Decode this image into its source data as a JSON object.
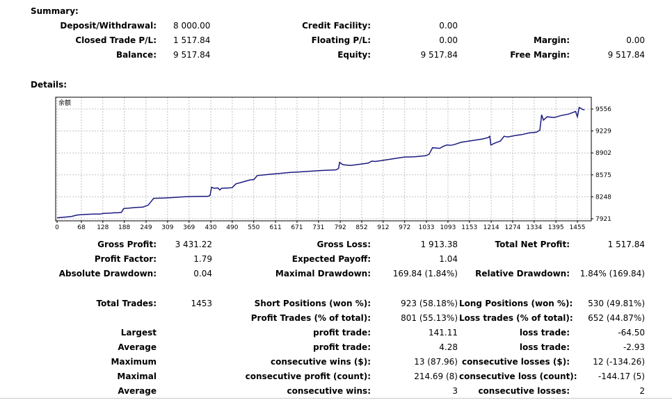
{
  "summary": {
    "title": "Summary:",
    "deposit_label": "Deposit/Withdrawal:",
    "deposit_value": "8 000.00",
    "credit_label": "Credit Facility:",
    "credit_value": "0.00",
    "closed_label": "Closed Trade P/L:",
    "closed_value": "1 517.84",
    "floating_label": "Floating P/L:",
    "floating_value": "0.00",
    "margin_label": "Margin:",
    "margin_value": "0.00",
    "balance_label": "Balance:",
    "balance_value": "9 517.84",
    "equity_label": "Equity:",
    "equity_value": "9 517.84",
    "free_margin_label": "Free Margin:",
    "free_margin_value": "9 517.84"
  },
  "details": {
    "title": "Details:"
  },
  "chart_data": {
    "type": "line",
    "title": "余额",
    "line_color": "#1a1a80",
    "grid": true,
    "x_ticks": [
      0,
      68,
      128,
      188,
      249,
      309,
      369,
      430,
      490,
      550,
      611,
      671,
      731,
      792,
      852,
      912,
      972,
      1033,
      1093,
      1153,
      1214,
      1274,
      1334,
      1395,
      1455
    ],
    "y_ticks": [
      7921,
      8248,
      8575,
      8902,
      9229,
      9556
    ],
    "xlim": [
      0,
      1490
    ],
    "ylim": [
      7921,
      9556
    ],
    "series": [
      {
        "x": [
          0,
          20,
          40,
          55,
          65,
          80,
          100,
          120,
          128,
          150,
          160,
          170,
          180,
          186,
          188,
          200,
          220,
          240,
          255,
          270,
          300,
          330,
          360,
          400,
          420,
          425,
          428,
          432,
          440,
          450,
          455,
          460,
          480,
          490,
          500,
          530,
          540,
          550,
          560,
          590,
          620,
          650,
          680,
          710,
          740,
          780,
          787,
          790,
          800,
          820,
          850,
          870,
          880,
          890,
          910,
          940,
          970,
          1000,
          1030,
          1040,
          1050,
          1070,
          1080,
          1090,
          1100,
          1110,
          1130,
          1160,
          1190,
          1205,
          1210,
          1213,
          1216,
          1220,
          1230,
          1240,
          1250,
          1260,
          1280,
          1300,
          1320,
          1340,
          1350,
          1355,
          1360,
          1370,
          1390,
          1410,
          1430,
          1440,
          1445,
          1450,
          1455,
          1460,
          1470,
          1475
        ],
        "values": [
          7935,
          7945,
          7955,
          7975,
          7980,
          7985,
          7990,
          7990,
          8000,
          8005,
          8010,
          8010,
          8015,
          8070,
          8075,
          8078,
          8090,
          8095,
          8125,
          8225,
          8230,
          8240,
          8250,
          8255,
          8255,
          8260,
          8270,
          8390,
          8375,
          8380,
          8350,
          8375,
          8380,
          8385,
          8440,
          8485,
          8500,
          8505,
          8565,
          8580,
          8595,
          8610,
          8620,
          8630,
          8640,
          8650,
          8670,
          8760,
          8725,
          8715,
          8735,
          8750,
          8780,
          8775,
          8790,
          8815,
          8840,
          8845,
          8860,
          8880,
          8980,
          8970,
          9000,
          9020,
          9015,
          9025,
          9060,
          9085,
          9110,
          9130,
          9150,
          9020,
          9025,
          9040,
          9060,
          9080,
          9150,
          9140,
          9160,
          9175,
          9200,
          9210,
          9240,
          9470,
          9390,
          9440,
          9430,
          9460,
          9480,
          9500,
          9510,
          9520,
          9440,
          9580,
          9550,
          9545
        ]
      }
    ]
  }
}
